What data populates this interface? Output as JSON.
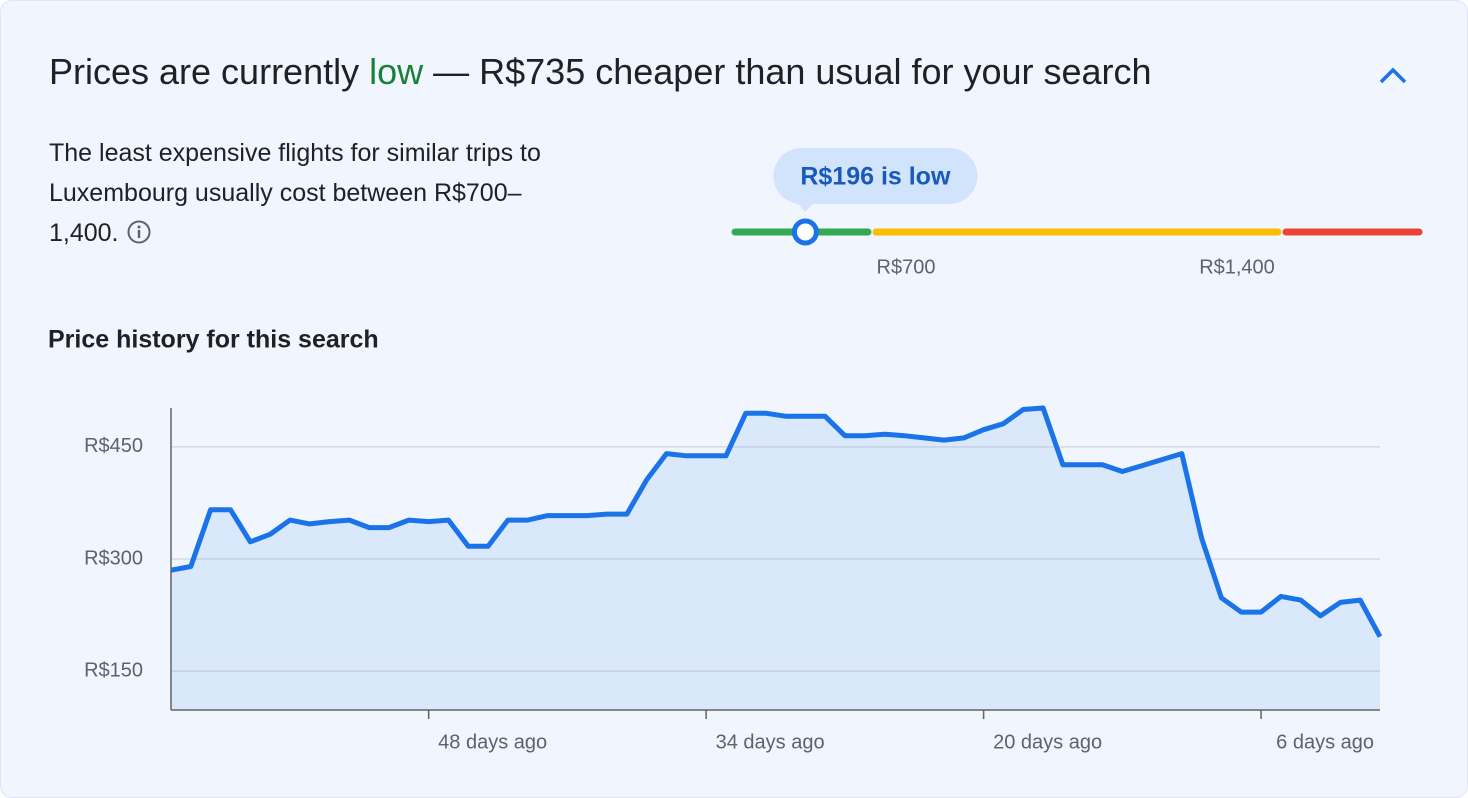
{
  "header": {
    "title": [
      "Prices are currently ",
      "low",
      " — R$735 cheaper than usual for your search"
    ]
  },
  "description": "The least expensive flights for similar trips to Luxembourg usually cost between R$700–1,400.",
  "range": {
    "current": 196,
    "current_label": "R$196 is low",
    "low": 700,
    "low_label": "R$700",
    "high": 1400,
    "high_label": "R$1,400"
  },
  "chart_data": {
    "type": "line",
    "title": "Price history for this search",
    "x": [
      61,
      60,
      59,
      58,
      57,
      56,
      55,
      54,
      53,
      52,
      51,
      50,
      49,
      48,
      47,
      46,
      45,
      44,
      43,
      42,
      41,
      40,
      39,
      38,
      37,
      36,
      35,
      34,
      33,
      32,
      31,
      30,
      29,
      28,
      27,
      26,
      25,
      24,
      23,
      22,
      21,
      20,
      19,
      18,
      17,
      16,
      15,
      14,
      13,
      12,
      11,
      10,
      9,
      8,
      7,
      6,
      5,
      4,
      3,
      2,
      1,
      0
    ],
    "series": [
      {
        "name": "Price",
        "color": "#1a73e8",
        "values": [
          285,
          290,
          366,
          366,
          323,
          333,
          352,
          347,
          350,
          352,
          342,
          342,
          352,
          350,
          352,
          317,
          317,
          352,
          352,
          358,
          358,
          358,
          360,
          360,
          406,
          441,
          438,
          438,
          438,
          495,
          495,
          491,
          491,
          491,
          465,
          465,
          467,
          465,
          462,
          459,
          462,
          473,
          481,
          500,
          502,
          426,
          426,
          426,
          417,
          425,
          433,
          441,
          328,
          248,
          229,
          229,
          250,
          245,
          224,
          242,
          245,
          196
        ]
      }
    ],
    "xlim": [
      61,
      0
    ],
    "xticks": [
      {
        "value": 48,
        "label": "48 days ago"
      },
      {
        "value": 34,
        "label": "34 days ago"
      },
      {
        "value": 20,
        "label": "20 days ago"
      },
      {
        "value": 6,
        "label": "6 days ago"
      }
    ],
    "ylim": [
      98,
      502
    ],
    "yticks": [
      {
        "value": 150,
        "label": "R$150"
      },
      {
        "value": 300,
        "label": "R$300"
      },
      {
        "value": 450,
        "label": "R$450"
      }
    ],
    "grid": true
  }
}
